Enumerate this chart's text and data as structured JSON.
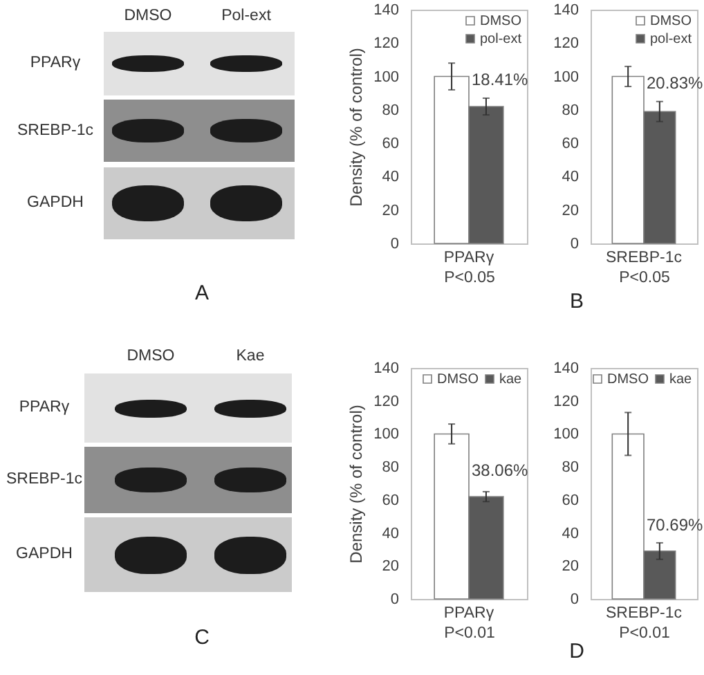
{
  "chart_data": [
    {
      "type": "other",
      "categories": [
        "DMSO",
        "Pol-ext"
      ],
      "y_categories": [
        "PPARγ",
        "SREBP-1c",
        "GAPDH"
      ],
      "annotations": [
        "A"
      ]
    },
    {
      "type": "bar",
      "categories": [
        "PPARγ"
      ],
      "xlabel": "P<0.05",
      "ylabel": "Density (% of control)",
      "series": [
        {
          "name": "DMSO",
          "color": "#ffffff",
          "values": [
            100
          ],
          "errors": [
            8
          ]
        },
        {
          "name": "pol-ext",
          "color": "#595959",
          "values": [
            82
          ],
          "errors": [
            5
          ]
        }
      ],
      "ylim": [
        0,
        140
      ],
      "yticks": [
        0,
        20,
        40,
        60,
        80,
        100,
        120,
        140
      ],
      "legend": "top right",
      "annotations": [
        {
          "text": "18.41%",
          "x": "PPARγ",
          "y": 98
        },
        "B"
      ]
    },
    {
      "type": "bar",
      "categories": [
        "SREBP-1c"
      ],
      "xlabel": "P<0.05",
      "series": [
        {
          "name": "DMSO",
          "color": "#ffffff",
          "values": [
            100
          ],
          "errors": [
            6
          ]
        },
        {
          "name": "pol-ext",
          "color": "#595959",
          "values": [
            79
          ],
          "errors": [
            6
          ]
        }
      ],
      "ylim": [
        0,
        140
      ],
      "yticks": [
        0,
        20,
        40,
        60,
        80,
        100,
        120,
        140
      ],
      "legend": "top right",
      "annotations": [
        {
          "text": "20.83%",
          "x": "SREBP-1c",
          "y": 96
        }
      ]
    },
    {
      "type": "other",
      "categories": [
        "DMSO",
        "Kae"
      ],
      "y_categories": [
        "PPARγ",
        "SREBP-1c",
        "GAPDH"
      ],
      "annotations": [
        "C"
      ]
    },
    {
      "type": "bar",
      "categories": [
        "PPARγ"
      ],
      "xlabel": "P<0.01",
      "ylabel": "Density (% of control)",
      "series": [
        {
          "name": "DMSO",
          "color": "#ffffff",
          "values": [
            100
          ],
          "errors": [
            6
          ]
        },
        {
          "name": "kae",
          "color": "#595959",
          "values": [
            62
          ],
          "errors": [
            3
          ]
        }
      ],
      "ylim": [
        0,
        140
      ],
      "yticks": [
        0,
        20,
        40,
        60,
        80,
        100,
        120,
        140
      ],
      "legend": "top right",
      "annotations": [
        {
          "text": "38.06%",
          "x": "PPARγ",
          "y": 78
        },
        "D"
      ]
    },
    {
      "type": "bar",
      "categories": [
        "SREBP-1c"
      ],
      "xlabel": "P<0.01",
      "series": [
        {
          "name": "DMSO",
          "color": "#ffffff",
          "values": [
            100
          ],
          "errors": [
            13
          ]
        },
        {
          "name": "kae",
          "color": "#595959",
          "values": [
            29
          ],
          "errors": [
            5
          ]
        }
      ],
      "ylim": [
        0,
        140
      ],
      "yticks": [
        0,
        20,
        40,
        60,
        80,
        100,
        120,
        140
      ],
      "legend": "top right",
      "annotations": [
        {
          "text": "70.69%",
          "x": "SREBP-1c",
          "y": 45
        }
      ]
    }
  ]
}
